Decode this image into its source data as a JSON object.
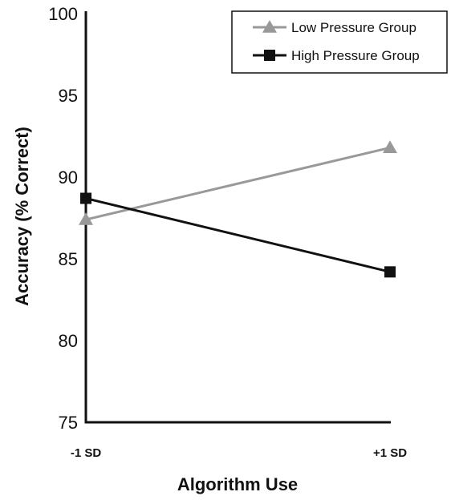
{
  "chart_data": {
    "type": "line",
    "title": "",
    "xlabel": "Algorithm Use",
    "ylabel": "Accuracy (% Correct)",
    "categories": [
      "-1 SD",
      "+1 SD"
    ],
    "ylim": [
      75,
      100
    ],
    "yticks": [
      75,
      80,
      85,
      90,
      95,
      100
    ],
    "grid": false,
    "legend_position": "top-right",
    "series": [
      {
        "name": "Low Pressure Group",
        "values": [
          87.4,
          91.8
        ],
        "color": "#999999",
        "marker": "triangle"
      },
      {
        "name": "High Pressure Group",
        "values": [
          88.7,
          84.2
        ],
        "color": "#111111",
        "marker": "square"
      }
    ]
  }
}
